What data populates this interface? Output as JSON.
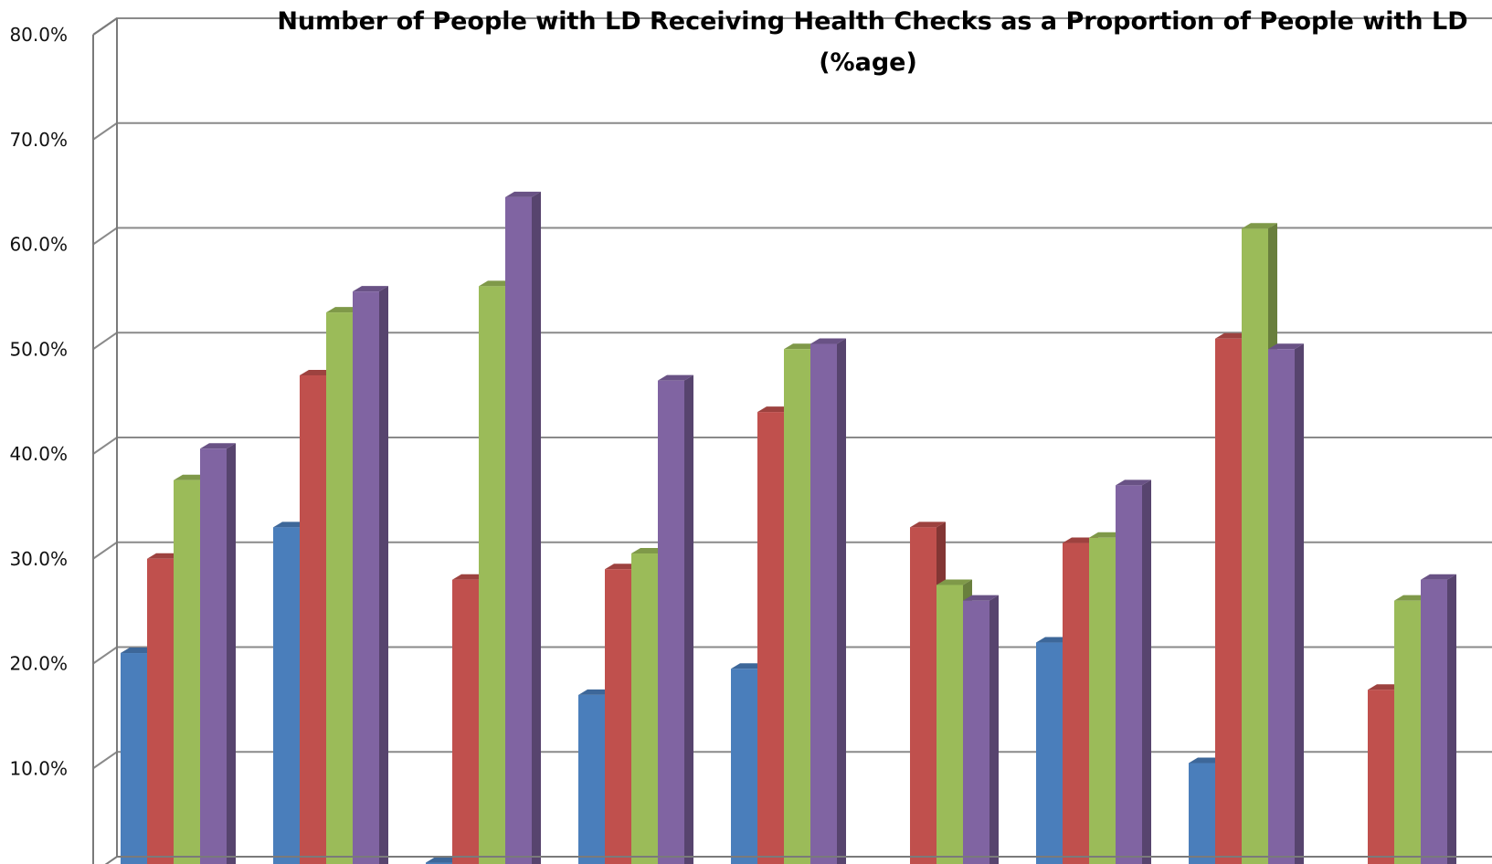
{
  "chart_data": {
    "type": "bar",
    "title": "Number of People with LD Receiving Health Checks as a Proportion of People with LD",
    "subtitle": "(%age)",
    "xlabel": "",
    "ylabel": "",
    "ylim": [
      0,
      80
    ],
    "yticks": [
      "0.0%",
      "10.0%",
      "20.0%",
      "30.0%",
      "40.0%",
      "50.0%",
      "60.0%",
      "70.0%",
      "80.0%"
    ],
    "grid": true,
    "legend": "none",
    "categories": [
      "",
      "",
      "",
      "",
      "",
      "",
      "",
      "",
      ""
    ],
    "series": [
      {
        "color": "#4a7ebb",
        "values": [
          21,
          33,
          1,
          17,
          19.5,
          0,
          22,
          10.5,
          0
        ]
      },
      {
        "color": "#c0504d",
        "values": [
          30,
          47.5,
          28,
          29,
          44,
          33,
          31.5,
          51,
          17.5
        ]
      },
      {
        "color": "#9bbb59",
        "values": [
          37.5,
          53.5,
          56,
          30.5,
          50,
          27.5,
          32,
          61.5,
          26
        ]
      },
      {
        "color": "#8064a2",
        "values": [
          40.5,
          55.5,
          64.5,
          47,
          50.5,
          26,
          37,
          50,
          28
        ]
      }
    ]
  }
}
